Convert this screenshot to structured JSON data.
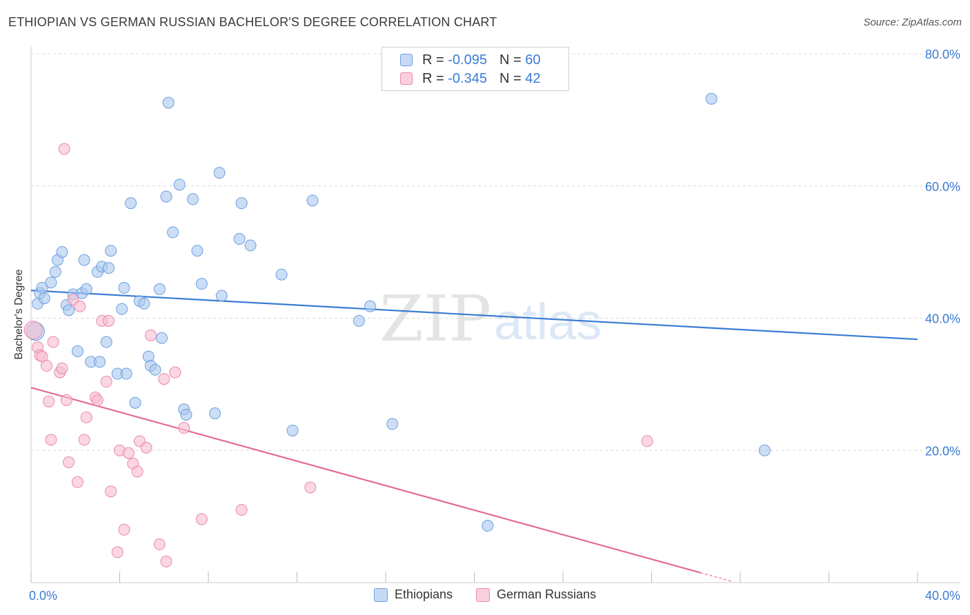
{
  "title": "ETHIOPIAN VS GERMAN RUSSIAN BACHELOR'S DEGREE CORRELATION CHART",
  "source": "Source: ZipAtlas.com",
  "watermark": {
    "zip": "ZIP",
    "atlas": "atlas"
  },
  "legend": {
    "ethiopians": {
      "r_label": "R = ",
      "r_value": "-0.095",
      "n_label": "N = ",
      "n_value": "60"
    },
    "german_russians": {
      "r_label": "R = ",
      "r_value": "-0.345",
      "n_label": "N = ",
      "n_value": "42"
    }
  },
  "colors": {
    "ethiopians_fill": "#aac8ee",
    "ethiopians_stroke": "#6b9fe0",
    "ethiopians_line": "#3a7bd5",
    "german_russians_fill": "#f6bcd0",
    "german_russians_stroke": "#ea88aa",
    "german_russians_line": "#e46a96",
    "grid": "#d9d9d9",
    "tick_text": "#3a7bd5"
  },
  "chart_data": {
    "type": "scatter",
    "title": "ETHIOPIAN VS GERMAN RUSSIAN BACHELOR'S DEGREE CORRELATION CHART",
    "xlabel": "",
    "ylabel": "Bachelor's Degree",
    "xlim": [
      0,
      40
    ],
    "ylim": [
      0,
      80
    ],
    "x_ticks": [
      "0.0%",
      "40.0%"
    ],
    "y_ticks": [
      "20.0%",
      "40.0%",
      "60.0%",
      "80.0%"
    ],
    "y_tick_values": [
      20,
      40,
      60,
      80
    ],
    "grid": true,
    "legend_placement": "top-center and bottom",
    "series": [
      {
        "name": "Ethiopians",
        "r": -0.095,
        "n": 60,
        "trend": {
          "x": [
            0,
            40
          ],
          "y": [
            44.2,
            36.8
          ]
        },
        "points": [
          [
            0.2,
            38.0
          ],
          [
            0.3,
            42.2
          ],
          [
            0.4,
            43.8
          ],
          [
            0.5,
            44.6
          ],
          [
            0.6,
            43.0
          ],
          [
            0.9,
            45.4
          ],
          [
            1.1,
            47.0
          ],
          [
            1.2,
            48.8
          ],
          [
            1.4,
            50.0
          ],
          [
            1.6,
            42.0
          ],
          [
            1.7,
            41.2
          ],
          [
            1.9,
            43.6
          ],
          [
            2.1,
            35.0
          ],
          [
            2.3,
            43.8
          ],
          [
            2.4,
            48.8
          ],
          [
            2.5,
            44.4
          ],
          [
            2.7,
            33.4
          ],
          [
            3.0,
            47.0
          ],
          [
            3.1,
            33.4
          ],
          [
            3.2,
            47.8
          ],
          [
            3.4,
            36.4
          ],
          [
            3.5,
            47.6
          ],
          [
            3.6,
            50.2
          ],
          [
            3.9,
            31.6
          ],
          [
            4.1,
            41.4
          ],
          [
            4.2,
            44.6
          ],
          [
            4.3,
            31.6
          ],
          [
            4.5,
            57.4
          ],
          [
            4.7,
            27.2
          ],
          [
            4.9,
            42.6
          ],
          [
            5.1,
            42.2
          ],
          [
            5.3,
            34.2
          ],
          [
            5.4,
            32.8
          ],
          [
            5.6,
            32.2
          ],
          [
            5.8,
            44.4
          ],
          [
            5.9,
            37.0
          ],
          [
            6.1,
            58.4
          ],
          [
            6.2,
            72.6
          ],
          [
            6.4,
            53.0
          ],
          [
            6.7,
            60.2
          ],
          [
            6.9,
            26.2
          ],
          [
            7.0,
            25.4
          ],
          [
            7.3,
            58.0
          ],
          [
            7.5,
            50.2
          ],
          [
            7.7,
            45.2
          ],
          [
            8.3,
            25.6
          ],
          [
            8.5,
            62.0
          ],
          [
            8.6,
            43.4
          ],
          [
            9.4,
            52.0
          ],
          [
            9.5,
            57.4
          ],
          [
            9.9,
            51.0
          ],
          [
            11.3,
            46.6
          ],
          [
            11.8,
            23.0
          ],
          [
            12.7,
            57.8
          ],
          [
            14.8,
            39.6
          ],
          [
            15.3,
            41.8
          ],
          [
            16.3,
            24.0
          ],
          [
            20.6,
            8.6
          ],
          [
            30.7,
            73.2
          ],
          [
            33.1,
            20.0
          ]
        ]
      },
      {
        "name": "German Russians",
        "r": -0.345,
        "n": 42,
        "trend": {
          "x": [
            0,
            30.2
          ],
          "y": [
            29.5,
            1.5
          ]
        },
        "points": [
          [
            0.1,
            38.2
          ],
          [
            0.3,
            35.6
          ],
          [
            0.4,
            34.4
          ],
          [
            0.5,
            34.2
          ],
          [
            0.7,
            32.8
          ],
          [
            0.8,
            27.4
          ],
          [
            0.9,
            21.6
          ],
          [
            1.0,
            36.4
          ],
          [
            1.3,
            31.8
          ],
          [
            1.4,
            32.4
          ],
          [
            1.5,
            65.6
          ],
          [
            1.6,
            27.6
          ],
          [
            1.7,
            18.2
          ],
          [
            1.9,
            42.8
          ],
          [
            2.1,
            15.2
          ],
          [
            2.2,
            41.8
          ],
          [
            2.4,
            21.6
          ],
          [
            2.5,
            25.0
          ],
          [
            2.9,
            28.0
          ],
          [
            3.0,
            27.6
          ],
          [
            3.2,
            39.6
          ],
          [
            3.4,
            30.4
          ],
          [
            3.5,
            39.6
          ],
          [
            3.6,
            13.8
          ],
          [
            3.9,
            4.6
          ],
          [
            4.0,
            20.0
          ],
          [
            4.2,
            8.0
          ],
          [
            4.4,
            19.6
          ],
          [
            4.6,
            18.0
          ],
          [
            4.8,
            16.8
          ],
          [
            4.9,
            21.4
          ],
          [
            5.2,
            20.4
          ],
          [
            5.4,
            37.4
          ],
          [
            5.8,
            5.8
          ],
          [
            6.0,
            30.8
          ],
          [
            6.1,
            3.2
          ],
          [
            6.5,
            31.8
          ],
          [
            6.9,
            23.4
          ],
          [
            7.7,
            9.6
          ],
          [
            9.5,
            11.0
          ],
          [
            12.6,
            14.4
          ],
          [
            27.8,
            21.4
          ]
        ]
      }
    ]
  }
}
